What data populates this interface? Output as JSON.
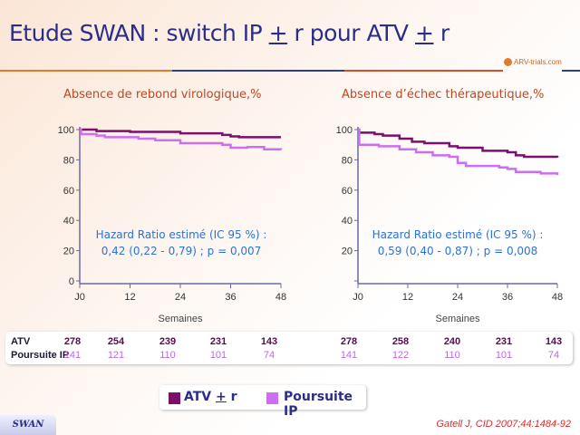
{
  "slide": {
    "title_parts": [
      "Etude SWAN : switch IP ",
      "+",
      " r pour ATV ",
      "+",
      " r"
    ],
    "logo_text": "ARV-trials.com",
    "tab_label": "SWAN",
    "citation": "Gatell J, CID 2007;44:1484-92"
  },
  "colors": {
    "atv": "#7a0f6e",
    "ip": "#cc6ef0",
    "title": "#2b2d8a",
    "accent": "#e07a30"
  },
  "legend": {
    "atv": [
      "ATV ",
      "+",
      " r"
    ],
    "ip": "Poursuite IP"
  },
  "table": {
    "row_labels": [
      "ATV",
      "Poursuite IP"
    ],
    "chart1": {
      "atv": [
        "278",
        "254",
        "239",
        "231",
        "143"
      ],
      "ip": [
        "141",
        "121",
        "110",
        "101",
        "74"
      ]
    },
    "chart2": {
      "atv": [
        "278",
        "258",
        "240",
        "231",
        "143"
      ],
      "ip": [
        "141",
        "122",
        "110",
        "101",
        "74"
      ]
    }
  },
  "chart_data": [
    {
      "type": "line",
      "title": "Absence de rebond virologique,%",
      "xlabel": "Semaines",
      "ylabel": "",
      "xticks": [
        "J0",
        "12",
        "24",
        "36",
        "48"
      ],
      "xtick_values": [
        0,
        12,
        24,
        36,
        48
      ],
      "yticks": [
        "0",
        "20",
        "40",
        "60",
        "80",
        "100"
      ],
      "ytick_values": [
        0,
        20,
        40,
        60,
        80,
        100
      ],
      "xlim": [
        0,
        48
      ],
      "ylim": [
        0,
        100
      ],
      "step": true,
      "annotation": [
        "Hazard Ratio estimé (IC 95 %) :",
        "0,42 (0,22 - 0,79) ; p = 0,007"
      ],
      "series": [
        {
          "name": "ATV + r",
          "x": [
            0,
            4,
            12,
            24,
            34,
            36,
            38,
            48
          ],
          "y": [
            100,
            99,
            98.5,
            97.5,
            96.5,
            95.5,
            95,
            95
          ]
        },
        {
          "name": "Poursuite IP",
          "x": [
            0,
            0.3,
            4,
            6,
            14,
            18,
            24,
            34,
            36,
            40,
            44,
            48
          ],
          "y": [
            100,
            97,
            96,
            95,
            94,
            93,
            91,
            90,
            88,
            88.5,
            87,
            86.5
          ]
        }
      ]
    },
    {
      "type": "line",
      "title": "Absence d’échec thérapeutique,%",
      "xlabel": "Semaines",
      "ylabel": "",
      "xticks": [
        "J0",
        "12",
        "24",
        "36",
        "48"
      ],
      "xtick_values": [
        0,
        12,
        24,
        36,
        48
      ],
      "yticks": [
        "",
        "20",
        "40",
        "60",
        "80",
        "100"
      ],
      "ytick_values": [
        0,
        20,
        40,
        60,
        80,
        100
      ],
      "xlim": [
        0,
        48
      ],
      "ylim": [
        0,
        100
      ],
      "step": true,
      "annotation": [
        "Hazard Ratio estimé (IC 95 %) :",
        "0,59 (0,40 - 0,87) ; p = 0,008"
      ],
      "series": [
        {
          "name": "ATV + r",
          "x": [
            0,
            0.3,
            4,
            6,
            10,
            13,
            16,
            22,
            24,
            30,
            36,
            38,
            40,
            48
          ],
          "y": [
            100,
            98,
            97,
            96,
            94,
            92,
            91,
            89,
            88,
            86,
            85,
            83,
            82,
            81.5
          ]
        },
        {
          "name": "Poursuite IP",
          "x": [
            0,
            0.3,
            5,
            10,
            14,
            18,
            22,
            24,
            26,
            34,
            36,
            38,
            44,
            48
          ],
          "y": [
            100,
            90,
            89,
            87,
            85,
            83,
            82,
            78,
            76,
            75,
            74,
            72,
            71,
            70
          ]
        }
      ]
    }
  ]
}
